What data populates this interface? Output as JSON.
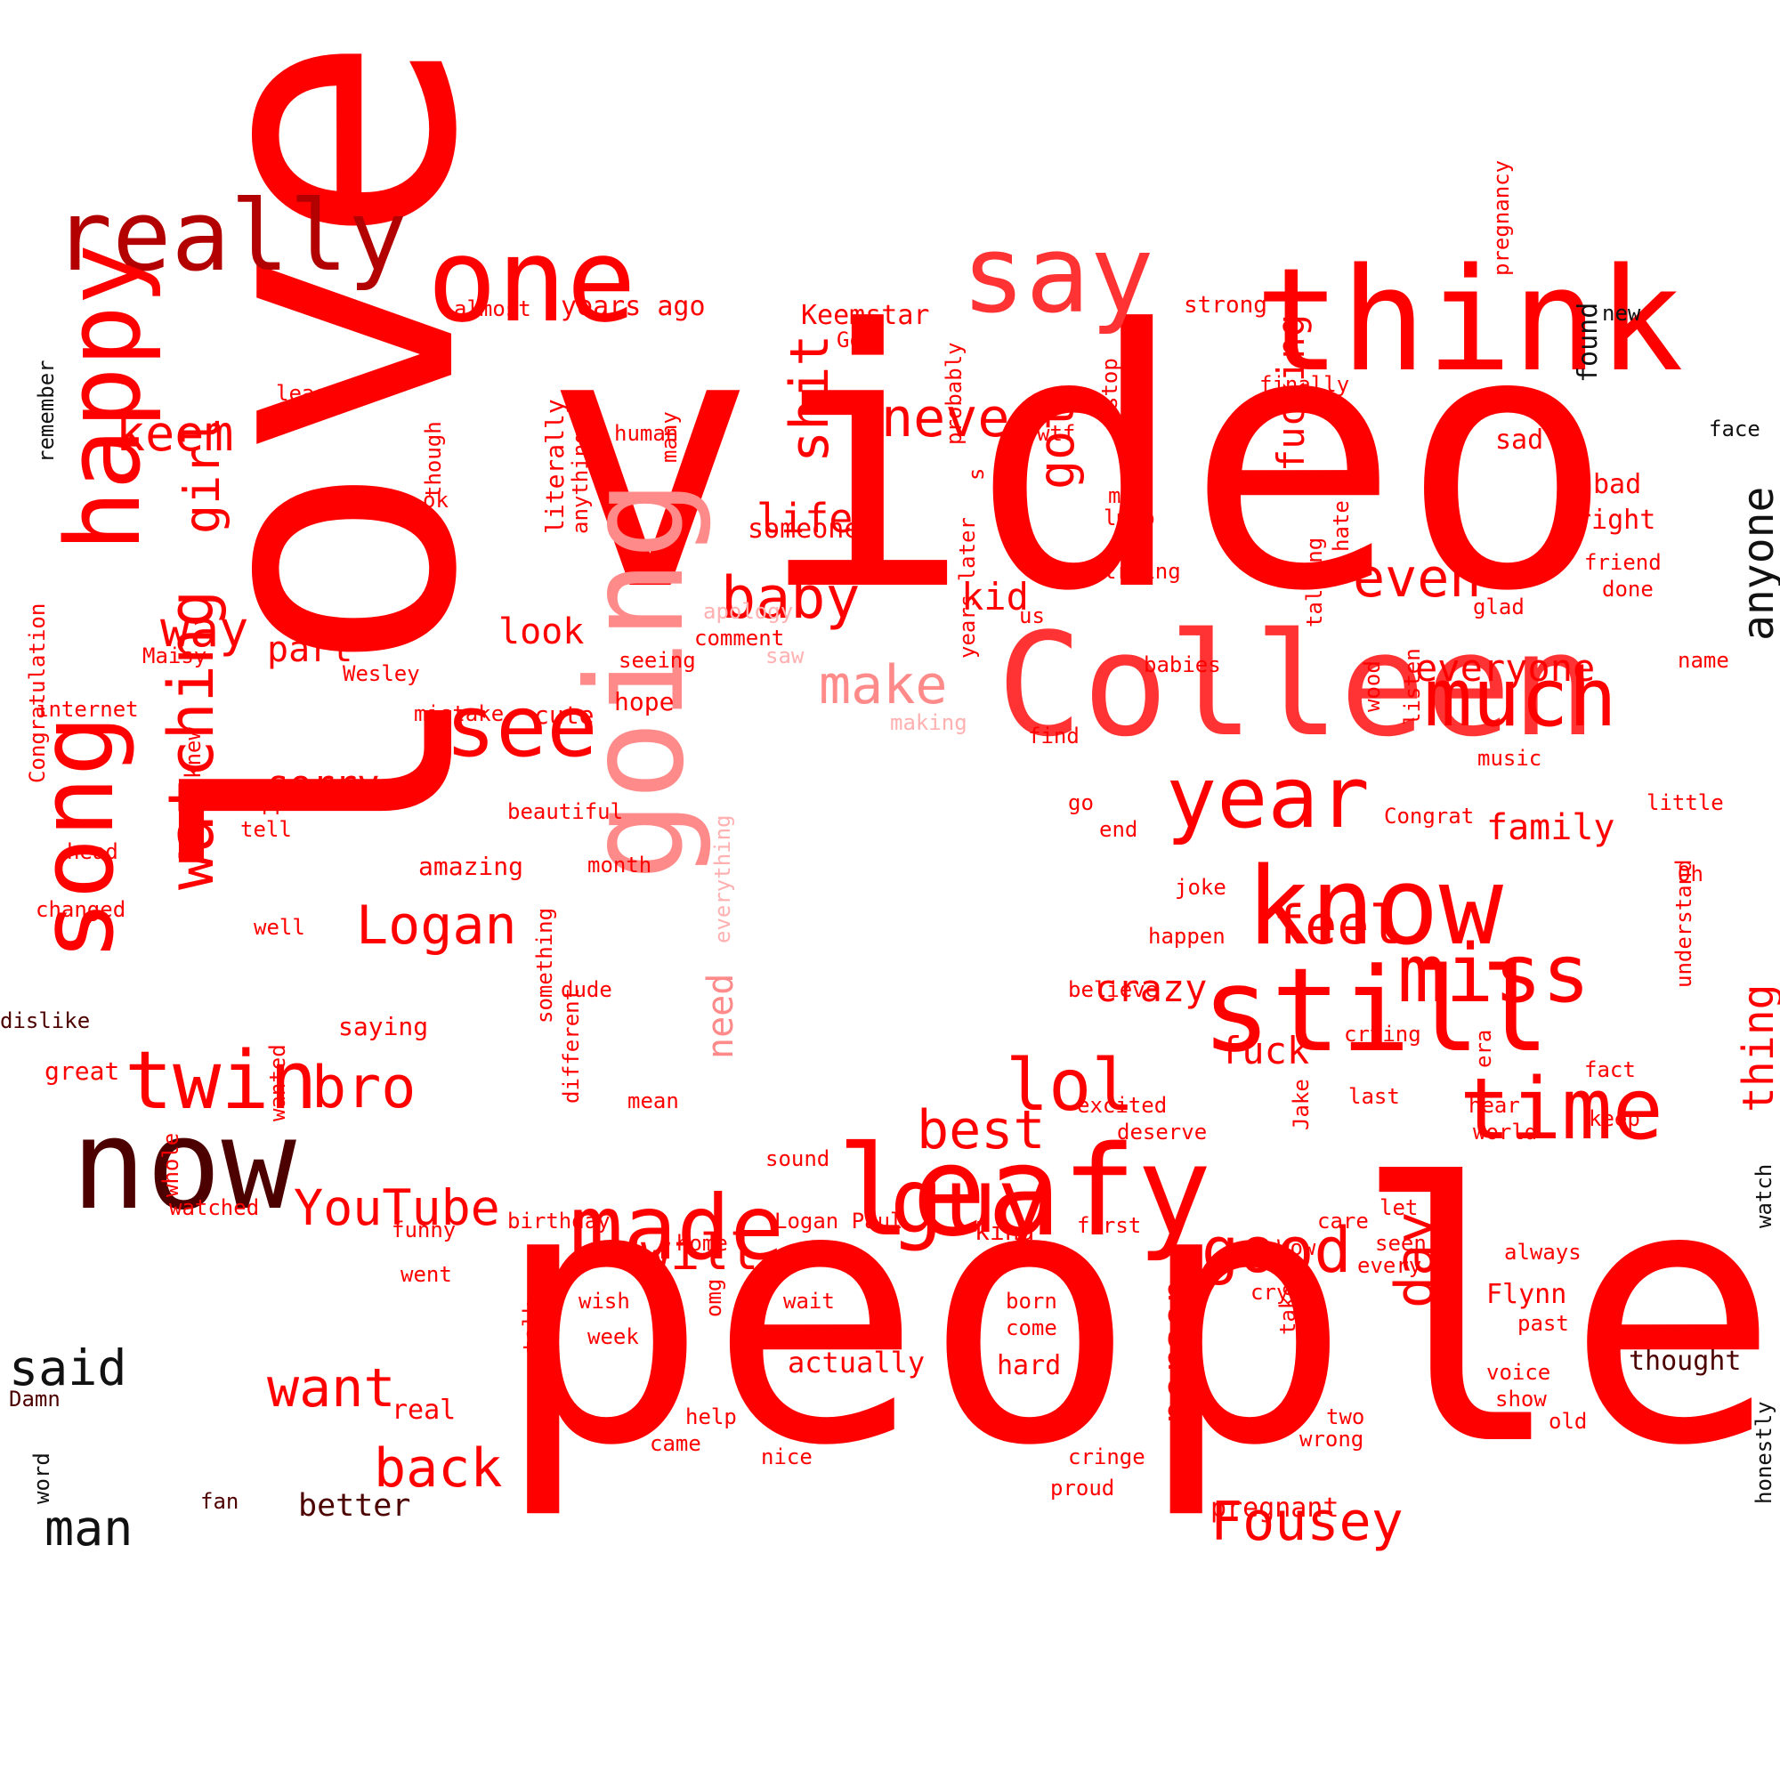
{
  "palette": {
    "red": "#ff0000",
    "bright_red": "#ff3333",
    "pink": "#ff8a8a",
    "light_pink": "#ffb0b0",
    "dark_red": "#b30000",
    "maroon": "#4d0000",
    "near_black": "#111111"
  },
  "words": [
    "video",
    "love",
    "people",
    "Colleen",
    "think",
    "one",
    "say",
    "really",
    "happy",
    "song",
    "going",
    "know",
    "still",
    "much",
    "year",
    "leafy",
    "now",
    "miss",
    "time",
    "guy",
    "made",
    "twin",
    "watching",
    "see",
    "never",
    "keem",
    "shit",
    "girl",
    "lol",
    "baby",
    "even",
    "got",
    "Logan",
    "bro",
    "way",
    "make",
    "feel",
    "good",
    "best",
    "anyone",
    "thing",
    "fucking",
    "YouTube",
    "will",
    "want",
    "back",
    "man",
    "said",
    "Fousey",
    "day",
    "person",
    "family",
    "everyone",
    "crazy",
    "fuck",
    "sorry",
    "life",
    "kid",
    "part",
    "look",
    "need",
    "someone",
    "found",
    "sad",
    "bad",
    "right",
    "friend",
    "done",
    "face",
    "new",
    "strong",
    "Keemstar",
    "God",
    "years ago",
    "almost",
    "least",
    "human",
    "many",
    "though",
    "ok",
    "literally",
    "anything",
    "apology",
    "comment",
    "saw",
    "making",
    "seeing",
    "hope",
    "cute",
    "mistake",
    "Wesley",
    "Maisy",
    "internet",
    "Congratulation",
    "remember",
    "knew",
    "happened",
    "tell",
    "head",
    "changed",
    "well",
    "amazing",
    "month",
    "beautiful",
    "everything",
    "dislike",
    "saying",
    "great",
    "something",
    "different",
    "dude",
    "mean",
    "wanted",
    "whole",
    "watched",
    "funny",
    "went",
    "birthday",
    "sound",
    "Logan Paul",
    "kind",
    "first",
    "home",
    "wish",
    "omg",
    "wait",
    "week",
    "actually",
    "born",
    "come",
    "hard",
    "real",
    "help",
    "came",
    "nice",
    "cringe",
    "proud",
    "better",
    "Damn",
    "fan",
    "word",
    "pregnant",
    "Flynn",
    "past",
    "voice",
    "show",
    "old",
    "two",
    "wrong",
    "thought",
    "honestly",
    "watch",
    "always",
    "seen",
    "every",
    "Wow",
    "care",
    "let",
    "cry",
    "take",
    "talk",
    "Jake",
    "deserve",
    "excited",
    "last",
    "hear",
    "world",
    "keep",
    "fact",
    "era",
    "crying",
    "believe",
    "happen",
    "joke",
    "end",
    "go",
    "Congrat",
    "little",
    "Oh",
    "understand",
    "music",
    "listen",
    "find",
    "wood",
    "babies",
    "talking",
    "name",
    "glad",
    "hate",
    "finally",
    "us",
    "mom",
    "lmao",
    "trying",
    "stop",
    "wtf",
    "s",
    "probably",
    "years later",
    "pregnancy"
  ]
}
